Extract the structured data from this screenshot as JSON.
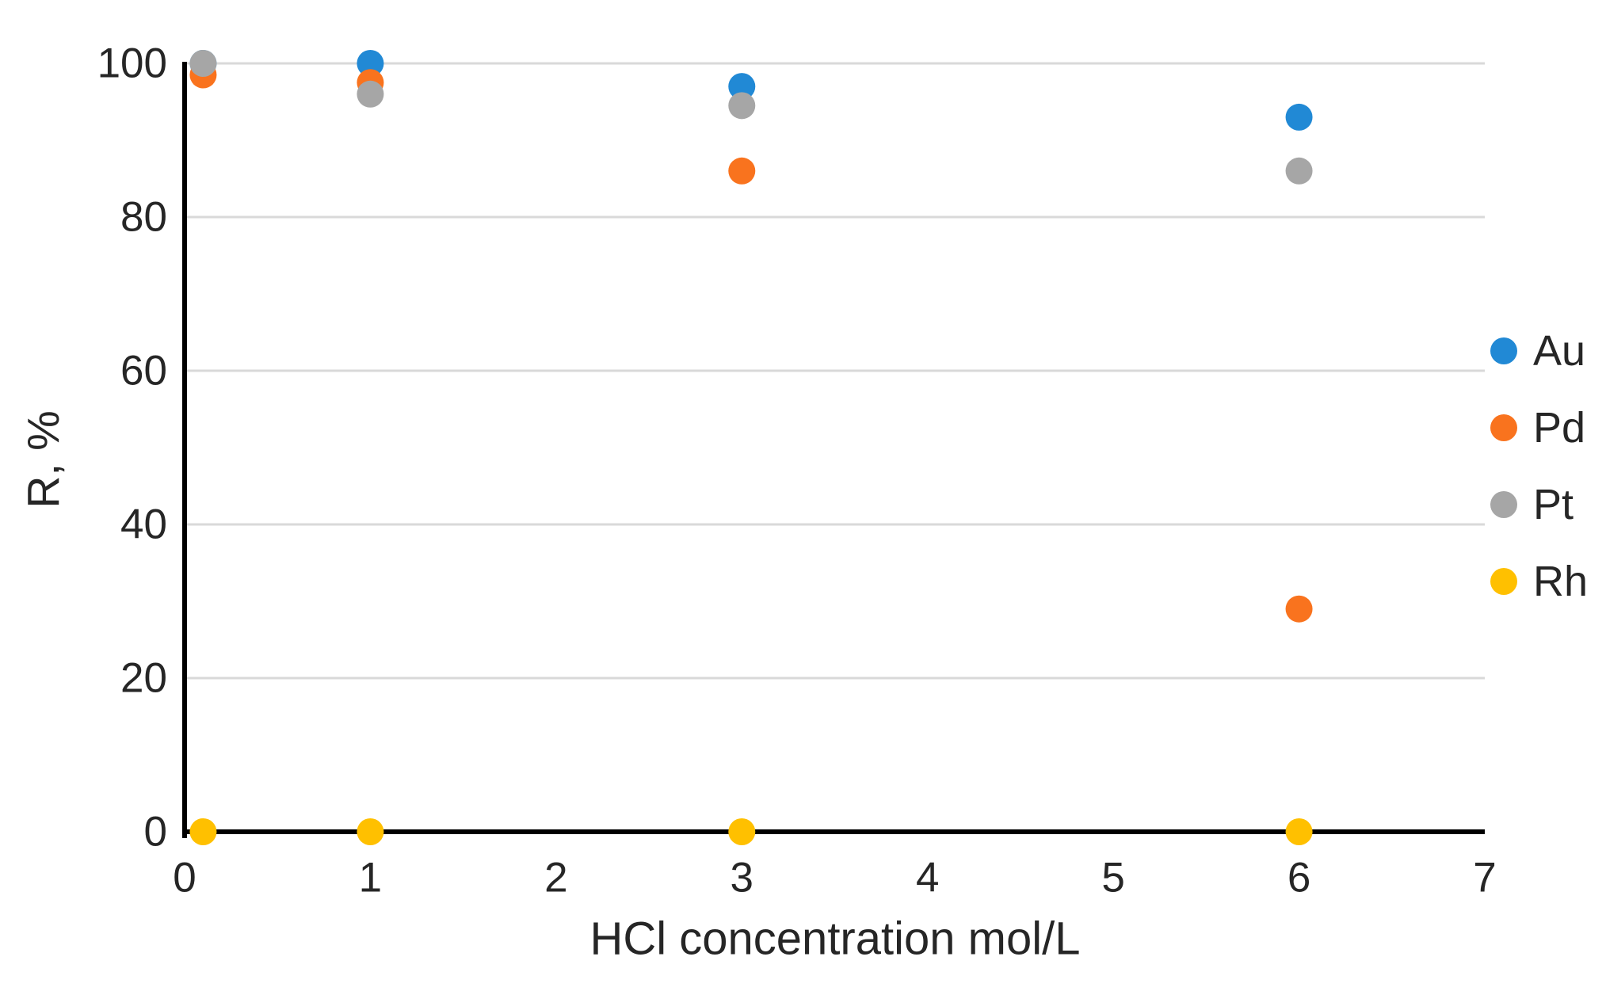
{
  "chart_data": {
    "type": "scatter",
    "title": "",
    "xlabel": "HCl concentration mol/L",
    "ylabel": "R, %",
    "xlim": [
      0,
      7
    ],
    "ylim": [
      0,
      100
    ],
    "x_ticks": [
      "0",
      "1",
      "2",
      "3",
      "4",
      "5",
      "6",
      "7"
    ],
    "y_ticks": [
      "0",
      "20",
      "40",
      "60",
      "80",
      "100"
    ],
    "grid": "horizontal-gridlines-only",
    "legend_position": "right",
    "series": [
      {
        "name": "Au",
        "color": "#2189D5",
        "points": [
          [
            0.1,
            100
          ],
          [
            1,
            100
          ],
          [
            3,
            97
          ],
          [
            6,
            93
          ]
        ]
      },
      {
        "name": "Pd",
        "color": "#F9731E",
        "points": [
          [
            0.1,
            98.5
          ],
          [
            1,
            97.5
          ],
          [
            3,
            86
          ],
          [
            6,
            29
          ]
        ]
      },
      {
        "name": "Pt",
        "color": "#A6A6A6",
        "points": [
          [
            0.1,
            100
          ],
          [
            1,
            96
          ],
          [
            3,
            94.5
          ],
          [
            6,
            86
          ]
        ]
      },
      {
        "name": "Rh",
        "color": "#FFC000",
        "points": [
          [
            0.1,
            0
          ],
          [
            1,
            0
          ],
          [
            3,
            0
          ],
          [
            6,
            0
          ]
        ]
      }
    ],
    "style_colors": {
      "gridline": "#D9D9D9",
      "axis": "#000000",
      "text": "#262626"
    }
  }
}
